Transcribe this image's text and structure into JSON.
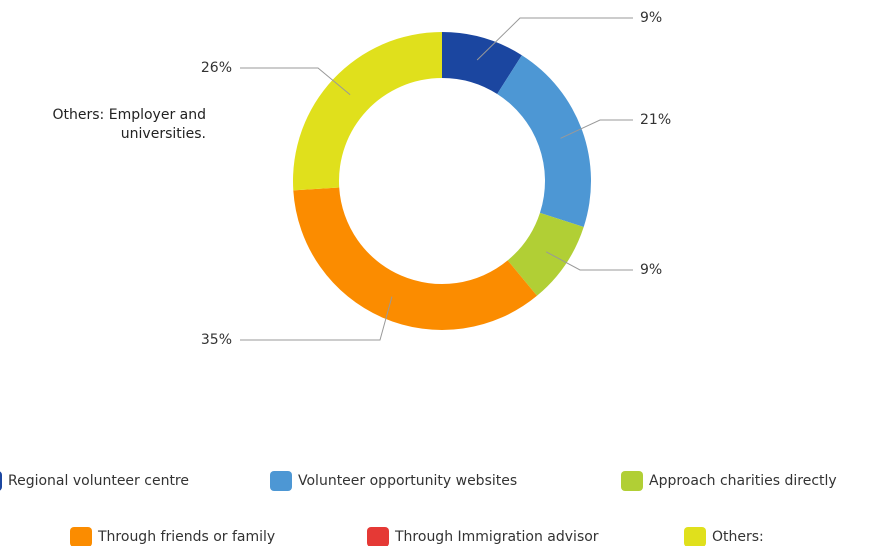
{
  "chart_data": {
    "type": "donut",
    "categories": [
      "Regional volunteer centre",
      "Volunteer opportunity websites",
      "Approach charities directly",
      "Through friends or family",
      "Through Immigration advisor",
      "Others:"
    ],
    "values": [
      9,
      21,
      9,
      35,
      0,
      26
    ],
    "value_labels": [
      "9%",
      "21%",
      "9%",
      "35%",
      null,
      "26%"
    ],
    "colors": [
      "#1b46a0",
      "#4d97d4",
      "#b1cf35",
      "#fb8c00",
      "#e53935",
      "#e0e01c"
    ],
    "annotation": "Others: Employer and universities."
  }
}
